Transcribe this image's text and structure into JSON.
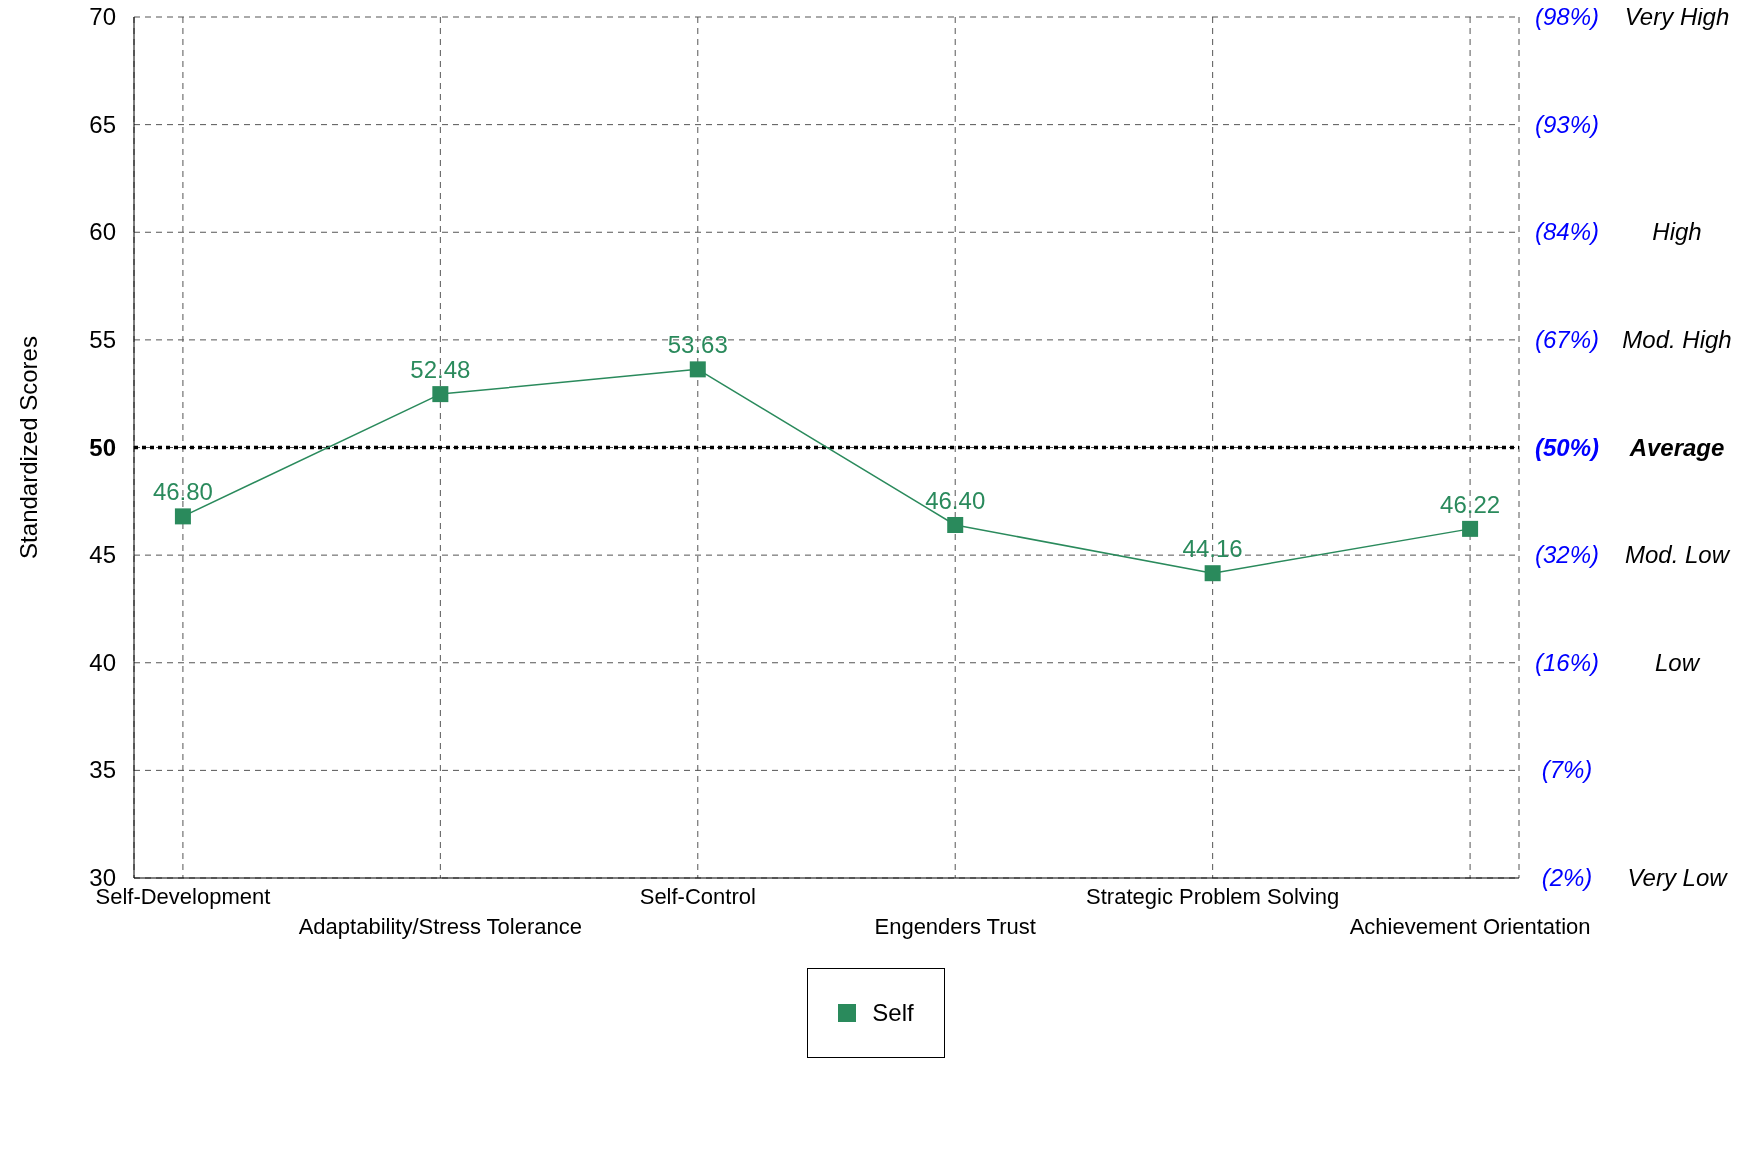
{
  "chart_data": {
    "type": "line",
    "ylabel": "Standardized Scores",
    "categories": [
      "Self-Development",
      "Adaptability/Stress Tolerance",
      "Self-Control",
      "Engenders Trust",
      "Strategic Problem Solving",
      "Achievement Orientation"
    ],
    "series": [
      {
        "name": "Self",
        "color": "#2a8a5c",
        "values": [
          46.8,
          52.48,
          53.63,
          46.4,
          44.16,
          46.22
        ],
        "value_labels": [
          "46.80",
          "52.48",
          "53.63",
          "46.40",
          "44.16",
          "46.22"
        ]
      }
    ],
    "ylim": [
      30,
      70
    ],
    "yticks": [
      30,
      35,
      40,
      45,
      50,
      55,
      60,
      65,
      70
    ],
    "annotations": [
      "(98%)",
      "Very High",
      "(93%)",
      "(84%)",
      "High",
      "(67%)",
      "Mod. High",
      "(50%)",
      "Average",
      "(32%)",
      "Mod. Low",
      "(16%)",
      "Low",
      "(7%)",
      "(2%)",
      "Very Low"
    ],
    "ref_lines": [
      {
        "axis": "y",
        "value": 50,
        "color": "#000000",
        "line_style": "dotted"
      }
    ],
    "grid": true,
    "legend": "bottom",
    "marker": "square",
    "line_style": "solid"
  }
}
